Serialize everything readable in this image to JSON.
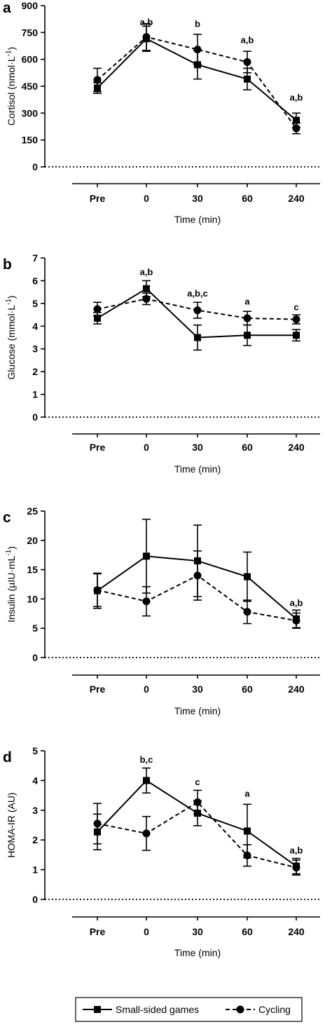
{
  "legend": {
    "items": [
      {
        "label": "Small-sided games",
        "marker": "square",
        "dash": "solid"
      },
      {
        "label": "Cycling",
        "marker": "circle",
        "dash": "dashed"
      }
    ]
  },
  "chart_data": [
    {
      "type": "line",
      "panel": "a",
      "categories": [
        "Pre",
        "0",
        "30",
        "60",
        "240"
      ],
      "xlabel": "Time (min)",
      "ylabel": "Cortisol (nmol·L",
      "ylabel_sup": "-1",
      "ylabel_tail": ")",
      "ylim": [
        0,
        900
      ],
      "yticks": [
        "0",
        "150",
        "300",
        "450",
        "600",
        "750",
        "900"
      ],
      "series": [
        {
          "name": "Small-sided games",
          "marker": "square",
          "dash": "solid",
          "values": [
            440,
            715,
            570,
            490,
            260
          ],
          "err": [
            30,
            70,
            80,
            60,
            40
          ]
        },
        {
          "name": "Cycling",
          "marker": "circle",
          "dash": "dashed",
          "values": [
            485,
            725,
            655,
            585,
            215
          ],
          "err": [
            65,
            75,
            85,
            60,
            30
          ]
        }
      ],
      "annotations": [
        "a,b",
        "b",
        "a,b",
        "a,b"
      ],
      "annotation_categories": [
        "0",
        "30",
        "60",
        "240"
      ],
      "annotation_y": [
        790,
        780,
        690,
        370
      ]
    },
    {
      "type": "line",
      "panel": "b",
      "categories": [
        "Pre",
        "0",
        "30",
        "60",
        "240"
      ],
      "xlabel": "Time (min)",
      "ylabel": "Glucose (mmol·L",
      "ylabel_sup": "-1",
      "ylabel_tail": ")",
      "ylim": [
        0,
        7
      ],
      "yticks": [
        "0",
        "1",
        "2",
        "3",
        "4",
        "5",
        "6",
        "7"
      ],
      "series": [
        {
          "name": "Small-sided games",
          "marker": "square",
          "dash": "solid",
          "values": [
            4.35,
            5.65,
            3.5,
            3.6,
            3.6
          ],
          "err": [
            0.25,
            0.35,
            0.55,
            0.45,
            0.25
          ]
        },
        {
          "name": "Cycling",
          "marker": "circle",
          "dash": "dashed",
          "values": [
            4.75,
            5.2,
            4.7,
            4.35,
            4.3
          ],
          "err": [
            0.3,
            0.25,
            0.35,
            0.3,
            0.2
          ]
        }
      ],
      "annotations": [
        "a,b",
        "a,b,c",
        "a",
        "c"
      ],
      "annotation_categories": [
        "0",
        "30",
        "60",
        "240"
      ],
      "annotation_y": [
        6.25,
        5.3,
        4.95,
        4.7
      ]
    },
    {
      "type": "line",
      "panel": "c",
      "categories": [
        "Pre",
        "0",
        "30",
        "60",
        "240"
      ],
      "xlabel": "Time (min)",
      "ylabel": "Insulin (µIU·mL",
      "ylabel_sup": "-1",
      "ylabel_tail": ")",
      "ylim": [
        0,
        25
      ],
      "yticks": [
        "0",
        "5",
        "10",
        "15",
        "20",
        "25"
      ],
      "series": [
        {
          "name": "Small-sided games",
          "marker": "square",
          "dash": "solid",
          "values": [
            11.4,
            17.3,
            16.5,
            13.8,
            6.6
          ],
          "err": [
            3.0,
            6.3,
            6.1,
            4.2,
            1.5
          ]
        },
        {
          "name": "Cycling",
          "marker": "circle",
          "dash": "dashed",
          "values": [
            11.5,
            9.6,
            14.0,
            7.8,
            6.3
          ],
          "err": [
            2.8,
            2.5,
            4.2,
            2.0,
            1.3
          ]
        }
      ],
      "annotations": [
        "a,b"
      ],
      "annotation_categories": [
        "240"
      ],
      "annotation_y": [
        8.8
      ]
    },
    {
      "type": "line",
      "panel": "d",
      "categories": [
        "Pre",
        "0",
        "30",
        "60",
        "240"
      ],
      "xlabel": "Time (min)",
      "ylabel": "HOMA-IR (AU)",
      "ylabel_sup": "",
      "ylabel_tail": "",
      "ylim": [
        0,
        5
      ],
      "yticks": [
        "0",
        "1",
        "2",
        "3",
        "4",
        "5"
      ],
      "series": [
        {
          "name": "Small-sided games",
          "marker": "square",
          "dash": "solid",
          "values": [
            2.27,
            4.0,
            2.9,
            2.3,
            1.12
          ],
          "err": [
            0.6,
            0.42,
            0.42,
            0.9,
            0.26
          ]
        },
        {
          "name": "Cycling",
          "marker": "circle",
          "dash": "dashed",
          "values": [
            2.55,
            2.22,
            3.27,
            1.48,
            1.07
          ],
          "err": [
            0.68,
            0.57,
            0.4,
            0.36,
            0.25
          ]
        }
      ],
      "annotations": [
        "b,c",
        "c",
        "a",
        "a,b"
      ],
      "annotation_categories": [
        "0",
        "30",
        "60",
        "240"
      ],
      "annotation_y": [
        4.6,
        3.85,
        3.45,
        1.55
      ]
    }
  ]
}
